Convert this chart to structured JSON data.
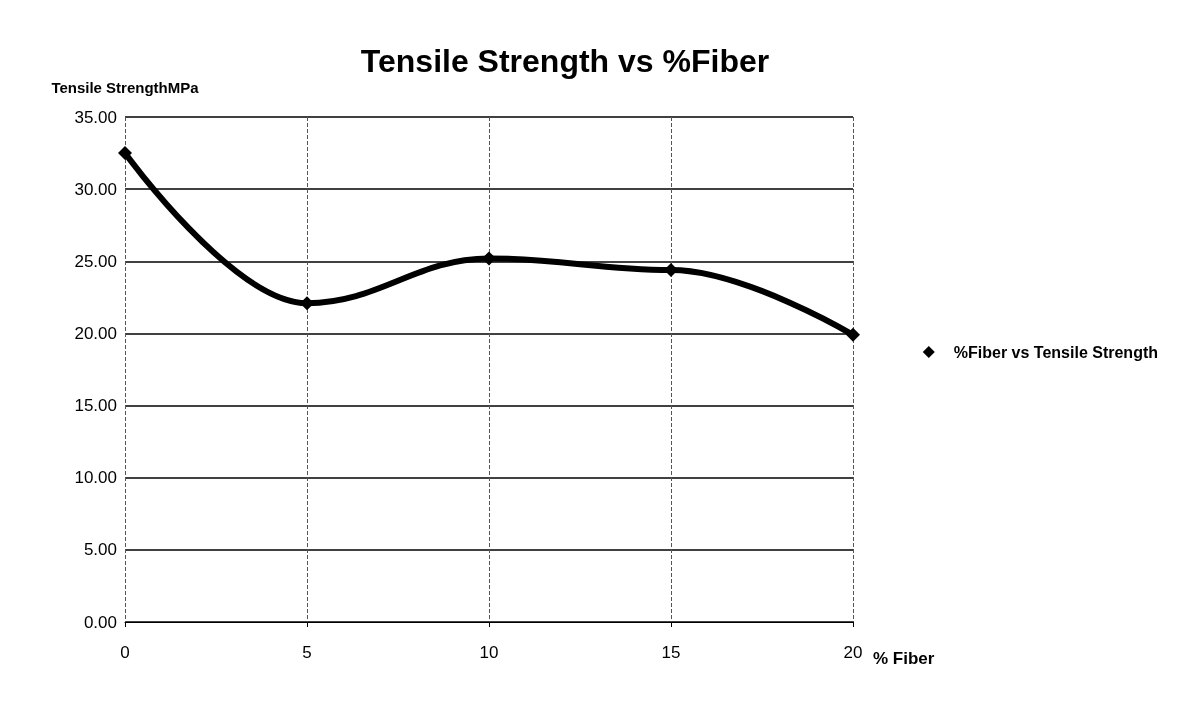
{
  "chart_data": {
    "type": "line",
    "title": "Tensile Strength vs %Fiber",
    "ylabel": "Tensile StrengthMPa",
    "xlabel": "% Fiber",
    "x": [
      0,
      5,
      10,
      15,
      20
    ],
    "series": [
      {
        "name": "%Fiber vs Tensile Strength",
        "color": "#000000",
        "values": [
          32.5,
          22.1,
          25.2,
          24.4,
          19.9
        ]
      }
    ],
    "xlim": [
      0,
      20
    ],
    "xticks": [
      0,
      5,
      10,
      15,
      20
    ],
    "ylim": [
      0,
      35
    ],
    "yticks": [
      {
        "value": 0,
        "label": "0.00"
      },
      {
        "value": 5,
        "label": "5.00"
      },
      {
        "value": 10,
        "label": "10.00"
      },
      {
        "value": 15,
        "label": "15.00"
      },
      {
        "value": 20,
        "label": "20.00"
      },
      {
        "value": 25,
        "label": "25.00"
      },
      {
        "value": 30,
        "label": "30.00"
      },
      {
        "value": 35,
        "label": "35.00"
      }
    ],
    "grid": true,
    "legend": "right",
    "marker": "diamond",
    "line_style": "solid"
  }
}
